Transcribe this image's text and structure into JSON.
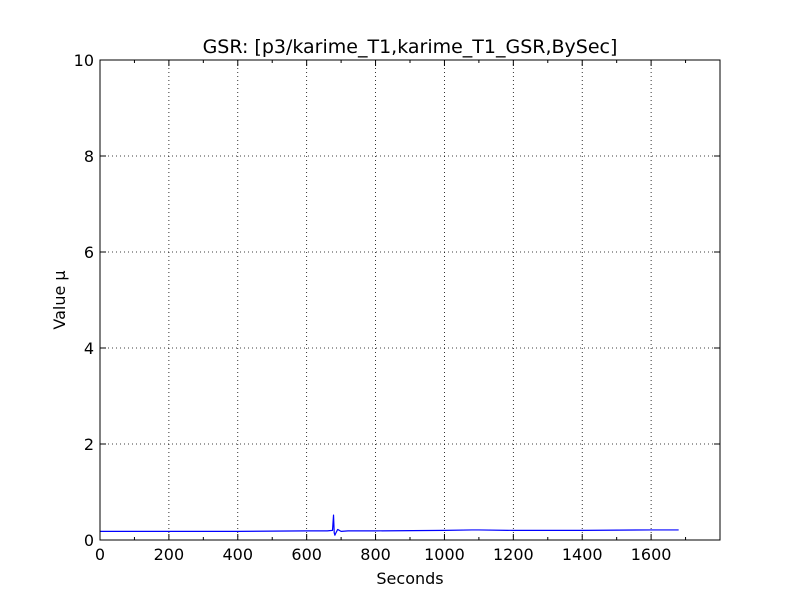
{
  "chart_data": {
    "type": "line",
    "title": "GSR: [p3/karime_T1,karime_T1_GSR,BySec]",
    "xlabel": "Seconds",
    "ylabel": "Value µ",
    "xlim": [
      0,
      1800
    ],
    "ylim": [
      0,
      10
    ],
    "xticks": [
      0,
      200,
      400,
      600,
      800,
      1000,
      1200,
      1400,
      1600
    ],
    "xtick_labels": [
      "0",
      "200",
      "400",
      "600",
      "800",
      "1000",
      "1200",
      "1400",
      "1600"
    ],
    "yticks": [
      0,
      2,
      4,
      6,
      8,
      10
    ],
    "ytick_labels": [
      "0",
      "2",
      "4",
      "6",
      "8",
      "10"
    ],
    "grid": true,
    "series": [
      {
        "color": "#0000ff",
        "x": [
          0,
          200,
          400,
          600,
          660,
          675,
          678,
          680,
          682,
          685,
          690,
          700,
          720,
          800,
          1000,
          1080,
          1100,
          1200,
          1400,
          1600,
          1680
        ],
        "y": [
          0.18,
          0.18,
          0.18,
          0.19,
          0.19,
          0.2,
          0.52,
          0.15,
          0.1,
          0.15,
          0.22,
          0.18,
          0.19,
          0.19,
          0.2,
          0.21,
          0.21,
          0.2,
          0.2,
          0.21,
          0.21
        ]
      }
    ]
  }
}
